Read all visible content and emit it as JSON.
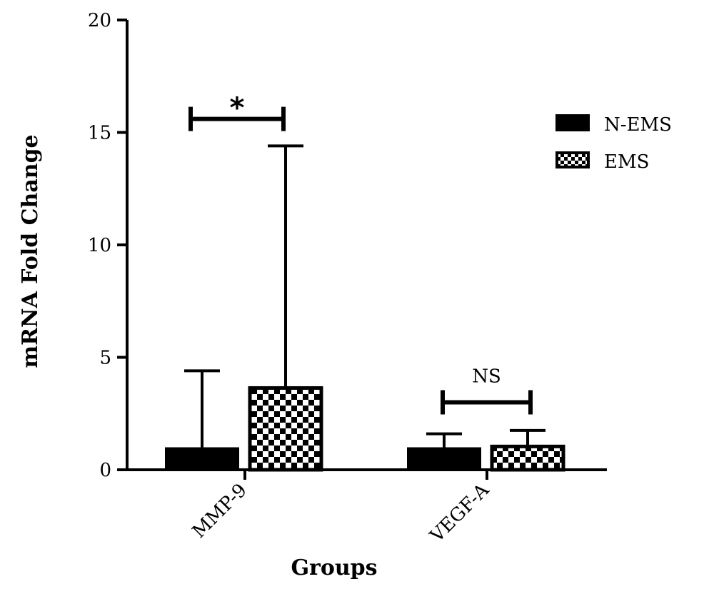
{
  "chart_data": {
    "type": "bar",
    "title": "",
    "xlabel": "Groups",
    "ylabel": "mRNA Fold Change",
    "categories": [
      "MMP-9",
      "VEGF-A"
    ],
    "series": [
      {
        "name": "N-EMS",
        "values": [
          1.0,
          1.0
        ],
        "error_upper": [
          4.4,
          1.6
        ],
        "fill": "solid",
        "color": "#000000"
      },
      {
        "name": "EMS",
        "values": [
          3.7,
          1.1
        ],
        "error_upper": [
          14.4,
          1.75
        ],
        "fill": "checkerboard",
        "color": "#000000"
      }
    ],
    "ylim": [
      0,
      20
    ],
    "yticks": [
      0,
      5,
      10,
      15,
      20
    ],
    "grid": false,
    "legend_position": "right",
    "significance": [
      {
        "category": "MMP-9",
        "label": "*",
        "y": 15.6
      },
      {
        "category": "VEGF-A",
        "label": "NS",
        "y": 3.0
      }
    ]
  }
}
